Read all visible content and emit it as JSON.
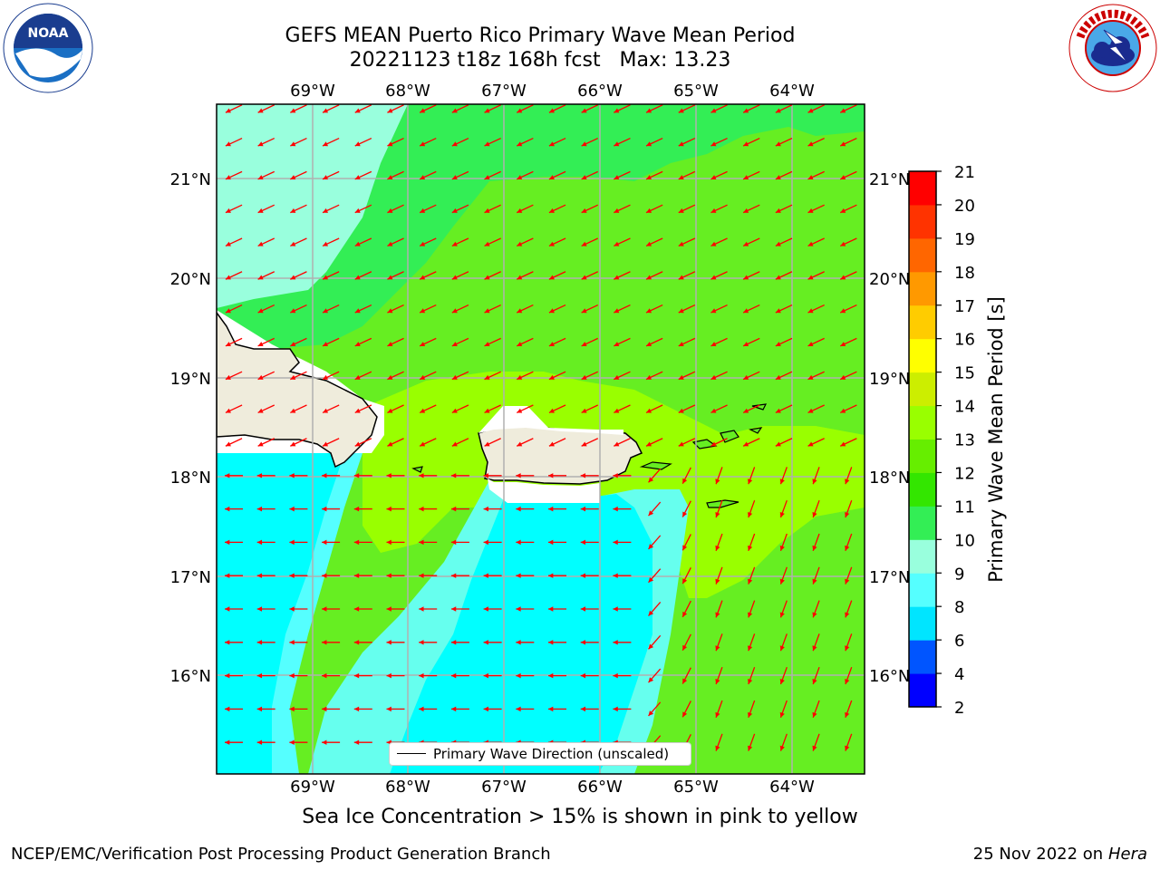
{
  "title": {
    "line1": "GEFS MEAN Puerto Rico Primary Wave Mean Period",
    "line2": "20221123 t18z 168h fcst   Max: 13.23"
  },
  "logos": {
    "left": "noaa-logo",
    "right": "nws-logo"
  },
  "map": {
    "lon_range": [
      -70.0,
      -63.25
    ],
    "lat_range": [
      15.0,
      21.75
    ],
    "lon_ticks": [
      "69°W",
      "68°W",
      "67°W",
      "66°W",
      "65°W",
      "64°W"
    ],
    "lat_ticks": [
      "21°N",
      "20°N",
      "19°N",
      "18°N",
      "17°N",
      "16°N"
    ],
    "grid": true,
    "land_color": "#efecdc",
    "arrow_color": "#ff0000",
    "arrows_north_of_18N_point": "southwest",
    "arrows_south_of_18N_point": "west, turning south in the east"
  },
  "legend": {
    "label": "Primary Wave Direction (unscaled)"
  },
  "colorbar": {
    "label": "Primary Wave Mean Period [s]",
    "ticks": [
      "2",
      "4",
      "6",
      "8",
      "9",
      "10",
      "11",
      "12",
      "13",
      "14",
      "15",
      "16",
      "17",
      "18",
      "19",
      "20",
      "21"
    ],
    "colors": [
      "#0000ff",
      "#0055ff",
      "#00e5ff",
      "#55ffff",
      "#99ffdd",
      "#33ee55",
      "#33e600",
      "#66ee00",
      "#99ff00",
      "#ccee00",
      "#ffff00",
      "#ffcc00",
      "#ff9900",
      "#ff6600",
      "#ff3300",
      "#ff0000"
    ]
  },
  "note": "Sea Ice Concentration > 15% is shown in pink to yellow",
  "footer": {
    "left": "NCEP/EMC/Verification Post Processing Product Generation Branch",
    "date": "25 Nov 2022 on",
    "machine": "Hera"
  }
}
